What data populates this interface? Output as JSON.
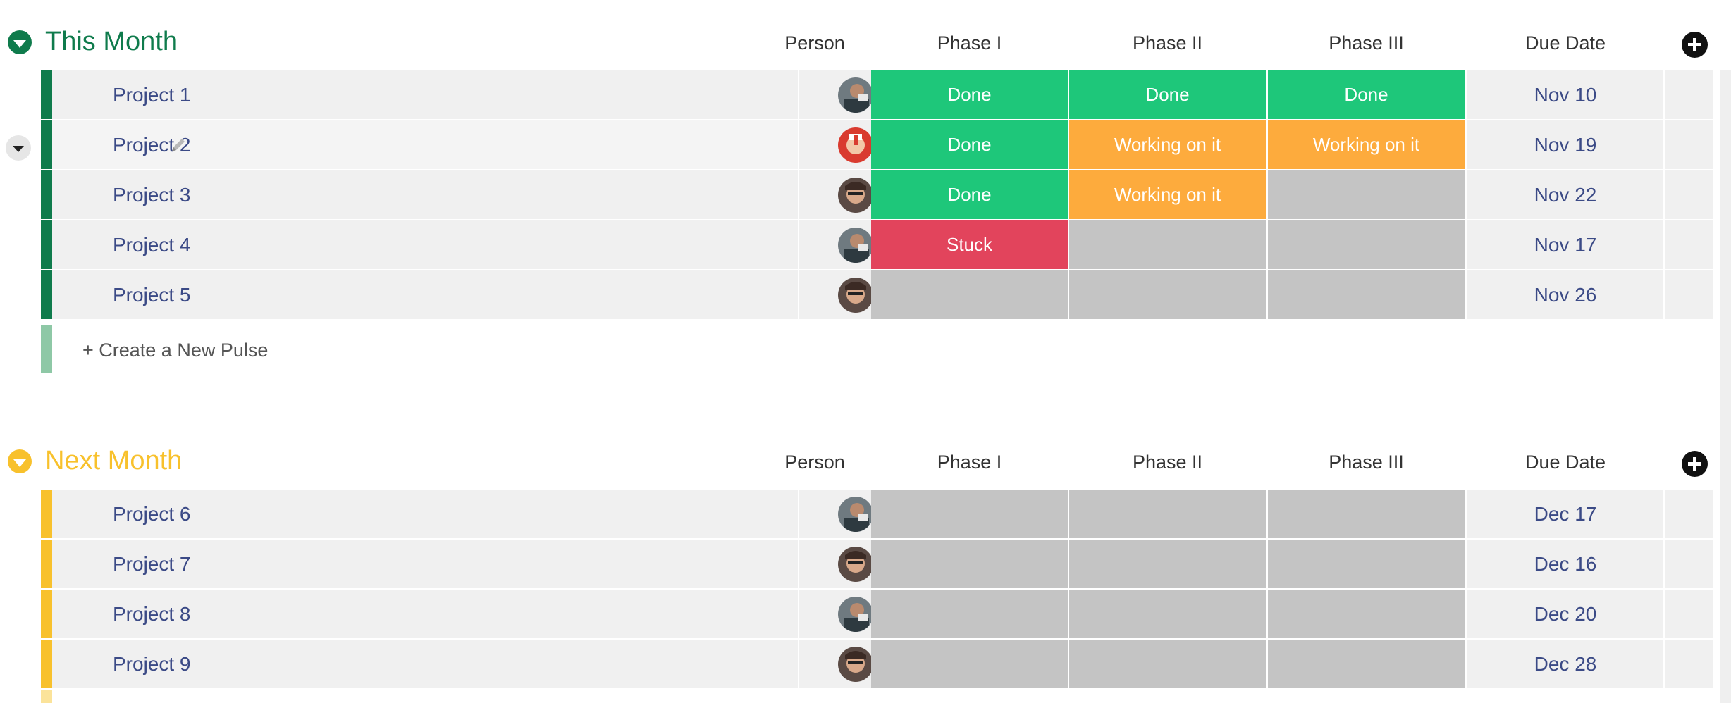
{
  "colors": {
    "this_month": "#0f7b4c",
    "next_month": "#f8c12c",
    "done": "#1ec77a",
    "working": "#fdab3d",
    "stuck": "#e2445c",
    "empty": "#c4c4c4"
  },
  "columns": {
    "person": "Person",
    "phase1": "Phase I",
    "phase2": "Phase II",
    "phase3": "Phase III",
    "due": "Due Date"
  },
  "groups": [
    {
      "title": "This Month",
      "rows": [
        {
          "name": "Project 1",
          "person_icon": "avatar-person-a",
          "phase1": "Done",
          "phase2": "Done",
          "phase3": "Done",
          "due": "Nov 10"
        },
        {
          "name": "Project 2",
          "person_icon": "avatar-person-b",
          "phase1": "Done",
          "phase2": "Working on it",
          "phase3": "Working on it",
          "due": "Nov 19"
        },
        {
          "name": "Project 3",
          "person_icon": "avatar-person-c",
          "phase1": "Done",
          "phase2": "Working on it",
          "phase3": "",
          "due": "Nov 22"
        },
        {
          "name": "Project 4",
          "person_icon": "avatar-person-a",
          "phase1": "Stuck",
          "phase2": "",
          "phase3": "",
          "due": "Nov 17"
        },
        {
          "name": "Project 5",
          "person_icon": "avatar-person-c",
          "phase1": "",
          "phase2": "",
          "phase3": "",
          "due": "Nov 26"
        }
      ],
      "new_pulse": "+ Create a New Pulse"
    },
    {
      "title": "Next Month",
      "rows": [
        {
          "name": "Project 6",
          "person_icon": "avatar-person-a",
          "phase1": "",
          "phase2": "",
          "phase3": "",
          "due": "Dec 17"
        },
        {
          "name": "Project 7",
          "person_icon": "avatar-person-c",
          "phase1": "",
          "phase2": "",
          "phase3": "",
          "due": "Dec 16"
        },
        {
          "name": "Project 8",
          "person_icon": "avatar-person-a",
          "phase1": "",
          "phase2": "",
          "phase3": "",
          "due": "Dec 20"
        },
        {
          "name": "Project 9",
          "person_icon": "avatar-person-c",
          "phase1": "",
          "phase2": "",
          "phase3": "",
          "due": "Dec 28"
        }
      ]
    }
  ]
}
